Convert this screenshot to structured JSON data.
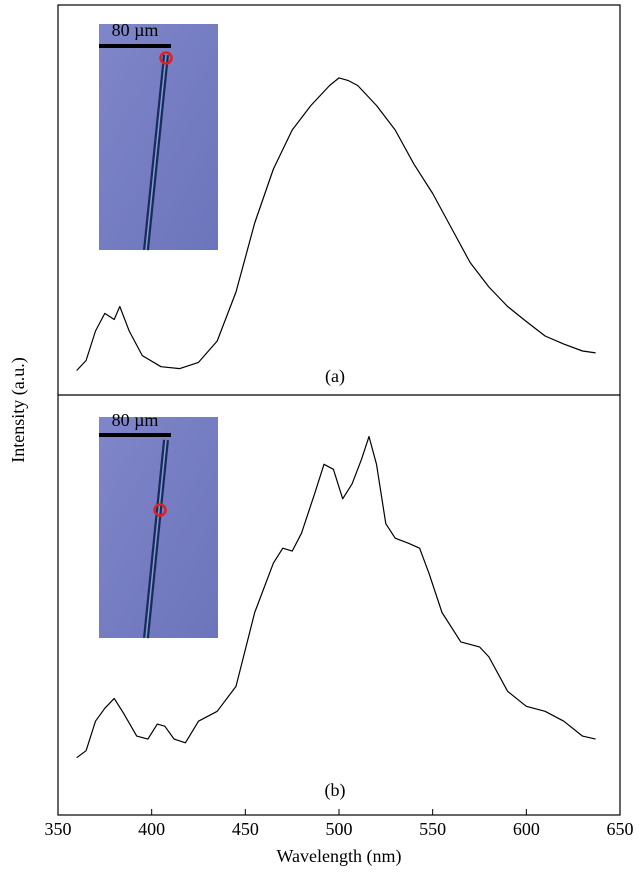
{
  "chart_data": [
    {
      "type": "line",
      "label": "(a)",
      "inset_label": "80 µm",
      "x": [
        360,
        365,
        370,
        375,
        380,
        383,
        388,
        395,
        405,
        415,
        425,
        435,
        445,
        455,
        465,
        475,
        485,
        495,
        500,
        505,
        510,
        520,
        530,
        540,
        550,
        560,
        570,
        580,
        590,
        600,
        610,
        620,
        630,
        637
      ],
      "series": [
        {
          "color": "#000000",
          "values": [
            0.064,
            0.09,
            0.167,
            0.213,
            0.197,
            0.231,
            0.167,
            0.103,
            0.074,
            0.069,
            0.085,
            0.141,
            0.269,
            0.449,
            0.59,
            0.692,
            0.756,
            0.808,
            0.828,
            0.821,
            0.808,
            0.756,
            0.692,
            0.603,
            0.526,
            0.436,
            0.346,
            0.282,
            0.231,
            0.192,
            0.154,
            0.133,
            0.115,
            0.11
          ]
        }
      ],
      "xlim": [
        350,
        650
      ],
      "ylim": [
        0,
        1
      ]
    },
    {
      "type": "line",
      "label": "(b)",
      "inset_label": "80 µm",
      "xlabel": "Wavelength (nm)",
      "ylabel": "Intensity (a.u.)",
      "x": [
        360,
        365,
        370,
        375,
        380,
        385,
        392,
        398,
        403,
        407,
        412,
        418,
        425,
        435,
        445,
        455,
        465,
        470,
        475,
        480,
        487,
        492,
        497,
        502,
        507,
        512,
        516,
        520,
        525,
        530,
        537,
        543,
        548,
        555,
        565,
        575,
        580,
        590,
        600,
        610,
        620,
        630,
        637
      ],
      "series": [
        {
          "color": "#000000",
          "values": [
            0.138,
            0.155,
            0.226,
            0.257,
            0.281,
            0.245,
            0.19,
            0.183,
            0.219,
            0.214,
            0.183,
            0.174,
            0.226,
            0.25,
            0.31,
            0.488,
            0.607,
            0.643,
            0.636,
            0.679,
            0.774,
            0.845,
            0.833,
            0.762,
            0.798,
            0.857,
            0.912,
            0.845,
            0.702,
            0.667,
            0.655,
            0.643,
            0.583,
            0.488,
            0.417,
            0.405,
            0.381,
            0.298,
            0.262,
            0.25,
            0.226,
            0.19,
            0.183
          ]
        }
      ],
      "xlim": [
        350,
        650
      ],
      "ylim": [
        0,
        1
      ],
      "xticks": [
        350,
        400,
        450,
        500,
        550,
        600,
        650
      ]
    }
  ]
}
